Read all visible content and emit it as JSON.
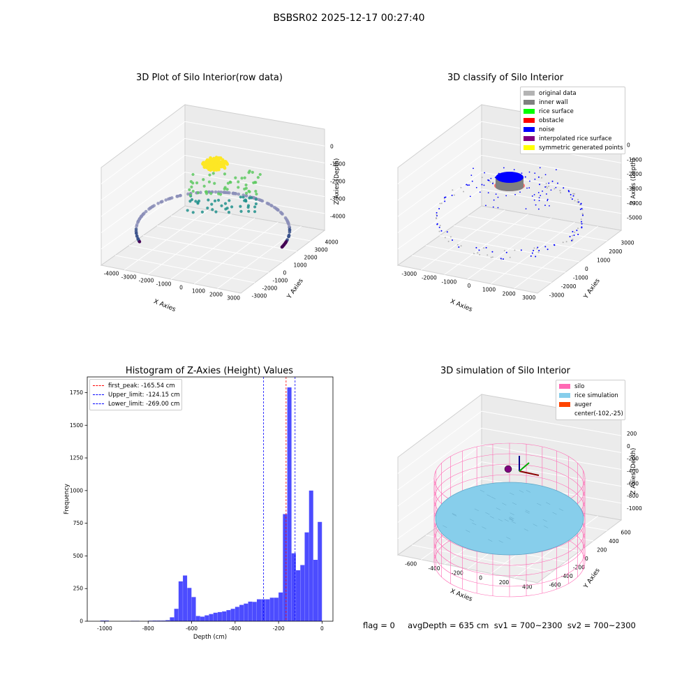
{
  "figure": {
    "title": "BSBSR02 2025-12-17 00:27:40",
    "stats_line": "flag = 0     avgDepth = 635 cm  sv1 = 700~2300  sv2 = 700~2300"
  },
  "panels": {
    "raw": {
      "title": "3D Plot of Silo Interior(row data)",
      "xlabel": "X Axies",
      "ylabel": "Y Axies",
      "zlabel": "Z Axies (Depth)",
      "xticks": [
        "-4000",
        "-3000",
        "-2000",
        "-1000",
        "0",
        "1000",
        "2000",
        "3000"
      ],
      "yticks": [
        "-3000",
        "-2000",
        "-1000",
        "0",
        "1000",
        "2000",
        "3000",
        "4000"
      ],
      "zticks": [
        "0",
        "-1000",
        "-2000",
        "-3000",
        "-4000"
      ]
    },
    "classify": {
      "title": "3D classify of Silo Interior",
      "xlabel": "X Axies",
      "ylabel": "Y Axies",
      "zlabel": "Z Axies (Depth)",
      "xticks": [
        "-3000",
        "-2000",
        "-1000",
        "0",
        "1000",
        "2000",
        "3000"
      ],
      "yticks": [
        "-3000",
        "-2000",
        "-1000",
        "0",
        "1000",
        "2000",
        "3000"
      ],
      "zticks": [
        "0",
        "-1000",
        "-2000",
        "-3000",
        "-4000",
        "-5000"
      ],
      "legend": [
        {
          "label": "original data",
          "color": "#b3b3b3"
        },
        {
          "label": "inner wall",
          "color": "#808080"
        },
        {
          "label": "rice surface",
          "color": "#00ff00"
        },
        {
          "label": "obstacle",
          "color": "#ff0000"
        },
        {
          "label": "noise",
          "color": "#0000ff"
        },
        {
          "label": "interpolated rice surface",
          "color": "#800080"
        },
        {
          "label": "symmetric generated points",
          "color": "#ffff00"
        }
      ]
    },
    "histogram": {
      "title": "Histogram of Z-Axies (Height) Values",
      "xlabel": "Depth (cm)",
      "ylabel": "Frequency",
      "legend": [
        {
          "label": "first_peak: -165.54 cm",
          "color": "#ff0000"
        },
        {
          "label": "Upper_limit: -124.15 cm",
          "color": "#0000ff"
        },
        {
          "label": "Lower_limit: -269.00 cm",
          "color": "#0000ff"
        }
      ]
    },
    "simulation": {
      "title": "3D simulation of Silo Interior",
      "xlabel": "X Axies",
      "ylabel": "Y Axies",
      "zlabel": "Z Axies (Depth)",
      "xticks": [
        "-600",
        "-400",
        "-200",
        "0",
        "200",
        "400"
      ],
      "yticks": [
        "-600",
        "-400",
        "-200",
        "0",
        "200",
        "400",
        "600"
      ],
      "zticks": [
        "200",
        "0",
        "-200",
        "-400",
        "-600",
        "-800",
        "-1000"
      ],
      "legend": [
        {
          "label": "silo",
          "color": "#ff69b4"
        },
        {
          "label": "rice simulation",
          "color": "#87ceeb"
        },
        {
          "label": "auger",
          "color": "#ff4500"
        },
        {
          "label": "center(-102,-25)",
          "color": ""
        }
      ]
    }
  },
  "chart_data": {
    "type": "bar",
    "title": "Histogram of Z-Axies (Height) Values",
    "xlabel": "Depth (cm)",
    "ylabel": "Frequency",
    "bar_color": "#0000ff",
    "bin_width": 20,
    "xlim": [
      -1080,
      50
    ],
    "ylim": [
      0,
      1870
    ],
    "xticks": [
      -1000,
      -800,
      -600,
      -400,
      -200,
      0
    ],
    "yticks": [
      0,
      250,
      500,
      750,
      1000,
      1250,
      1500,
      1750
    ],
    "bins_left_edge": [
      -1020,
      -1000,
      -880,
      -860,
      -800,
      -780,
      -760,
      -740,
      -720,
      -700,
      -680,
      -660,
      -640,
      -620,
      -600,
      -580,
      -560,
      -540,
      -520,
      -500,
      -480,
      -460,
      -440,
      -420,
      -400,
      -380,
      -360,
      -340,
      -320,
      -300,
      -280,
      -260,
      -240,
      -220,
      -200,
      -180,
      -160,
      -140,
      -120,
      -100,
      -80,
      -60,
      -40,
      -20
    ],
    "counts": [
      5,
      5,
      3,
      3,
      4,
      5,
      5,
      5,
      8,
      30,
      95,
      305,
      350,
      255,
      185,
      40,
      35,
      45,
      55,
      65,
      70,
      75,
      85,
      95,
      110,
      125,
      135,
      150,
      148,
      168,
      168,
      168,
      180,
      180,
      220,
      820,
      1790,
      520,
      390,
      430,
      680,
      1000,
      470,
      760
    ],
    "lines": [
      {
        "name": "first_peak",
        "value": -165.54,
        "color": "#ff0000"
      },
      {
        "name": "Upper_limit",
        "value": -124.15,
        "color": "#0000ff"
      },
      {
        "name": "Lower_limit",
        "value": -269.0,
        "color": "#0000ff"
      }
    ]
  }
}
